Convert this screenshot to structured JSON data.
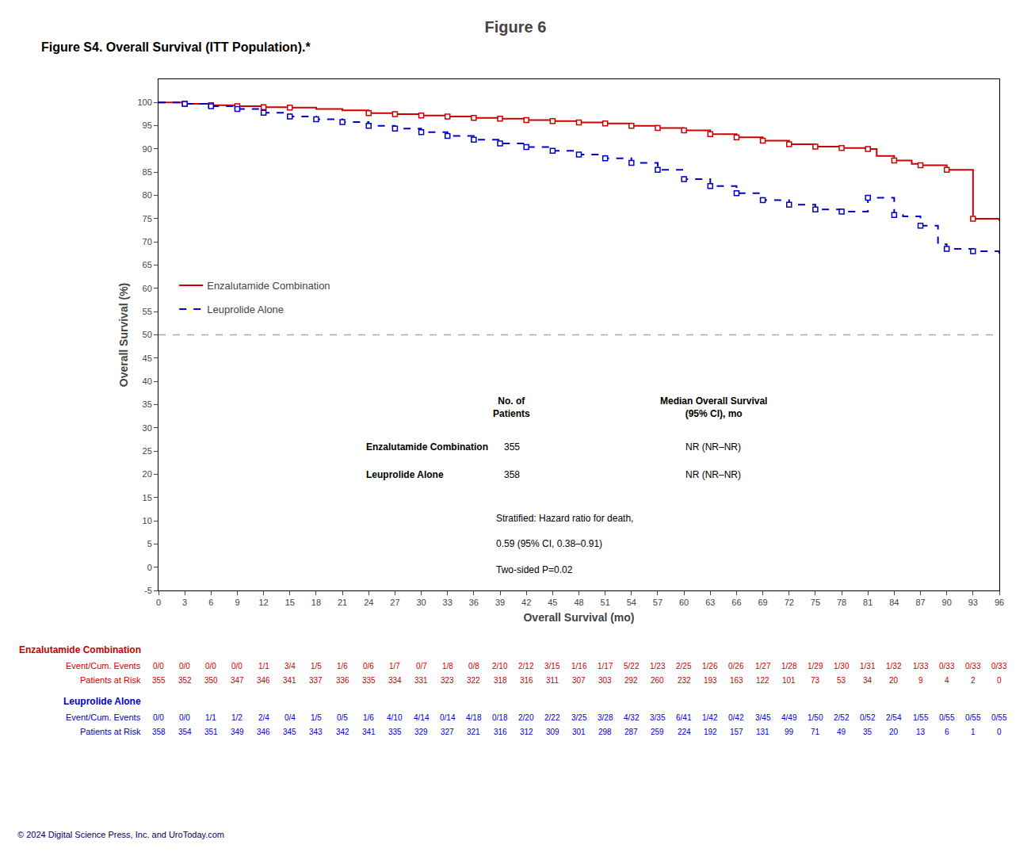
{
  "chart_data": {
    "type": "line",
    "title": "Figure 6",
    "subtitle": "Figure S4. Overall Survival (ITT Population).*",
    "x_label": "Overall Survival (mo)",
    "y_label": "Overall Survival (%)",
    "xlim": [
      0,
      96
    ],
    "ylim": [
      -5,
      105
    ],
    "xticks": [
      0,
      3,
      6,
      9,
      12,
      15,
      18,
      21,
      24,
      27,
      30,
      33,
      36,
      39,
      42,
      45,
      48,
      51,
      54,
      57,
      60,
      63,
      66,
      69,
      72,
      75,
      78,
      81,
      84,
      87,
      90,
      93,
      96
    ],
    "yticks": [
      -5,
      0,
      5,
      10,
      15,
      20,
      25,
      30,
      35,
      40,
      45,
      50,
      55,
      60,
      65,
      70,
      75,
      80,
      85,
      90,
      95,
      100
    ],
    "grid": false,
    "legend": "left",
    "series": [
      {
        "name": "Enzalutamide Combination",
        "color": "#cc0000",
        "line_style": "solid",
        "marker": "square",
        "x": [
          0,
          3,
          6,
          9,
          12,
          15,
          18,
          21,
          24,
          27,
          30,
          33,
          36,
          39,
          42,
          45,
          48,
          51,
          54,
          57,
          60,
          63,
          66,
          69,
          72,
          75,
          78,
          81,
          82,
          84,
          86,
          87,
          90,
          93,
          96
        ],
        "values": [
          100,
          99.7,
          99.4,
          99.2,
          99.0,
          98.9,
          98.6,
          98.3,
          97.7,
          97.5,
          97.2,
          97.0,
          96.7,
          96.5,
          96.2,
          96.0,
          95.7,
          95.5,
          95.0,
          94.5,
          94.0,
          93.2,
          92.5,
          91.8,
          91.0,
          90.5,
          90.2,
          90.0,
          88.5,
          87.5,
          86.8,
          86.5,
          85.5,
          75.0,
          74.5
        ],
        "censor_x": [
          3,
          6,
          9,
          12,
          15,
          24,
          27,
          30,
          33,
          36,
          39,
          42,
          45,
          48,
          51,
          54,
          57,
          60,
          63,
          66,
          69,
          72,
          75,
          78,
          81,
          84,
          87,
          90,
          93
        ],
        "censor_values": [
          99.7,
          99.4,
          99.2,
          99.0,
          98.9,
          97.7,
          97.5,
          97.2,
          97.0,
          96.7,
          96.5,
          96.2,
          96.0,
          95.7,
          95.5,
          95.0,
          94.5,
          94.0,
          93.2,
          92.5,
          91.8,
          91.0,
          90.5,
          90.2,
          90.0,
          87.5,
          86.5,
          85.5,
          75.0
        ]
      },
      {
        "name": "Leuprolide Alone",
        "color": "#0000cc",
        "line_style": "dashed",
        "marker": "square",
        "x": [
          0,
          3,
          6,
          9,
          12,
          15,
          18,
          21,
          24,
          27,
          30,
          33,
          36,
          39,
          42,
          45,
          48,
          51,
          54,
          57,
          60,
          63,
          66,
          69,
          72,
          75,
          78,
          81,
          84,
          85,
          87,
          89,
          90,
          93,
          96
        ],
        "values": [
          100,
          99.7,
          99.2,
          98.6,
          97.8,
          97.0,
          96.4,
          95.8,
          95.0,
          94.4,
          93.6,
          92.8,
          92.0,
          91.2,
          90.4,
          89.6,
          88.8,
          88.0,
          87.0,
          85.5,
          83.5,
          82.0,
          80.5,
          79.0,
          78.0,
          77.0,
          76.5,
          79.5,
          75.8,
          75.5,
          73.5,
          69.5,
          68.5,
          68.0,
          67.5
        ],
        "censor_x": [
          3,
          6,
          9,
          12,
          15,
          18,
          21,
          24,
          27,
          30,
          33,
          36,
          39,
          42,
          45,
          48,
          51,
          54,
          57,
          60,
          63,
          66,
          69,
          72,
          75,
          78,
          81,
          84,
          87,
          90,
          93
        ],
        "censor_values": [
          99.7,
          99.2,
          98.6,
          97.8,
          97.0,
          96.4,
          95.8,
          95.0,
          94.4,
          93.6,
          92.8,
          92.0,
          91.2,
          90.4,
          89.6,
          88.8,
          88.0,
          87.0,
          85.5,
          83.5,
          82.0,
          80.5,
          79.0,
          78.0,
          77.0,
          76.5,
          79.5,
          75.8,
          73.5,
          68.5,
          68.0
        ]
      }
    ],
    "reference_line": {
      "value": 50,
      "color": "#aaaaaa",
      "line_style": "dashed"
    },
    "summary_table": {
      "headers": [
        "No. of\nPatients",
        "Median Overall Survival\n(95% CI), mo"
      ],
      "rows": [
        {
          "label": "Enzalutamide Combination",
          "patients": 355,
          "median": "NR (NR–NR)"
        },
        {
          "label": "Leuprolide Alone",
          "patients": 358,
          "median": "NR (NR–NR)"
        }
      ]
    },
    "annotations": [
      "Stratified: Hazard ratio for death,",
      "0.59 (95% CI, 0.38–0.91)",
      "Two-sided P=0.02"
    ],
    "risk_table": [
      {
        "name": "Enzalutamide Combination",
        "color": "#cc0000",
        "events_label": "Event/Cum. Events",
        "events": [
          "0/0",
          "0/0",
          "0/0",
          "0/0",
          "1/1",
          "3/4",
          "1/5",
          "1/6",
          "0/6",
          "1/7",
          "0/7",
          "1/8",
          "0/8",
          "2/10",
          "2/12",
          "3/15",
          "1/16",
          "1/17",
          "5/22",
          "1/23",
          "2/25",
          "1/26",
          "0/26",
          "1/27",
          "1/28",
          "1/29",
          "1/30",
          "1/31",
          "1/32",
          "1/33",
          "0/33",
          "0/33",
          "0/33"
        ],
        "at_risk_label": "Patients at Risk",
        "at_risk": [
          355,
          352,
          350,
          347,
          346,
          341,
          337,
          336,
          335,
          334,
          331,
          323,
          322,
          318,
          316,
          311,
          307,
          303,
          292,
          260,
          232,
          193,
          163,
          122,
          101,
          73,
          53,
          34,
          20,
          9,
          4,
          2,
          0
        ]
      },
      {
        "name": "Leuprolide Alone",
        "color": "#0000cc",
        "events_label": "Event/Cum. Events",
        "events": [
          "0/0",
          "0/0",
          "1/1",
          "1/2",
          "2/4",
          "0/4",
          "1/5",
          "0/5",
          "1/6",
          "4/10",
          "4/14",
          "0/14",
          "4/18",
          "0/18",
          "2/20",
          "2/22",
          "3/25",
          "3/28",
          "4/32",
          "3/35",
          "6/41",
          "1/42",
          "0/42",
          "3/45",
          "4/49",
          "1/50",
          "2/52",
          "0/52",
          "2/54",
          "1/55",
          "0/55",
          "0/55",
          "0/55"
        ],
        "at_risk_label": "Patients at Risk",
        "at_risk": [
          358,
          354,
          351,
          349,
          346,
          345,
          343,
          342,
          341,
          335,
          329,
          327,
          321,
          316,
          312,
          309,
          301,
          298,
          287,
          259,
          224,
          192,
          157,
          131,
          99,
          71,
          49,
          35,
          20,
          13,
          6,
          1,
          0
        ]
      }
    ],
    "footer": "© 2024 Digital Science Press, Inc. and UroToday.com"
  }
}
